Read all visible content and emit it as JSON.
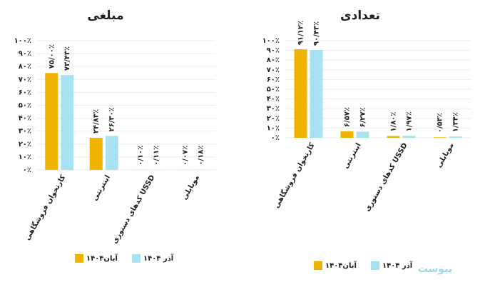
{
  "chart_data": [
    {
      "type": "bar",
      "title": "مبلغی",
      "categories": [
        "کارتخوان فروشگاهی",
        "اینترنتی",
        "کدهای دستوری USSD",
        "موبایلی"
      ],
      "series": [
        {
          "name": "آبان۱۴۰۴",
          "color": "#f0b400",
          "values": [
            75.0,
            24.83,
            0.1,
            0.07
          ],
          "value_labels": [
            "۷۵/۰۰٪",
            "۲۴/۸۳٪",
            "۰/۱۰٪",
            "۰/۰۷٪"
          ]
        },
        {
          "name": "آذر ۱۴۰۴",
          "color": "#a8e2f2",
          "values": [
            73.43,
            26.3,
            0.11,
            0.18
          ],
          "value_labels": [
            "۷۳/۴۳٪",
            "۲۶/۳۰٪",
            "۰/۱۱٪",
            "۰/۱۸٪"
          ]
        }
      ],
      "ylim": [
        0,
        100
      ],
      "yticks": [
        {
          "value": 0,
          "label": "۰٪"
        },
        {
          "value": 10,
          "label": "۱۰٪"
        },
        {
          "value": 20,
          "label": "۲۰٪"
        },
        {
          "value": 30,
          "label": "۳۰٪"
        },
        {
          "value": 40,
          "label": "۴۰٪"
        },
        {
          "value": 50,
          "label": "۵۰٪"
        },
        {
          "value": 60,
          "label": "۶۰٪"
        },
        {
          "value": 70,
          "label": "۷۰٪"
        },
        {
          "value": 80,
          "label": "۸۰٪"
        },
        {
          "value": 90,
          "label": "۹۰٪"
        },
        {
          "value": 100,
          "label": "۱۰۰٪"
        }
      ],
      "grid": true
    },
    {
      "type": "bar",
      "title": "تعدادی",
      "categories": [
        "کارتخوان فروشگاهی",
        "اینترنتی",
        "کدهای دستوری USSD",
        "موبایلی"
      ],
      "series": [
        {
          "name": "آبان۱۴۰۴",
          "color": "#f0b400",
          "values": [
            91.12,
            6.57,
            1.8,
            0.53
          ],
          "value_labels": [
            "۹۱/۱۲٪",
            "۶/۵۷٪",
            "۱/۸۰٪",
            "۰/۵۳٪"
          ]
        },
        {
          "name": "آذر ۱۴۰۴",
          "color": "#a8e2f2",
          "values": [
            90.43,
            6.27,
            1.97,
            1.34
          ],
          "value_labels": [
            "۹۰/۴۳٪",
            "۶/۲۷٪",
            "۱/۹۷٪",
            "۱/۳۴٪"
          ]
        }
      ],
      "ylim": [
        0,
        100
      ],
      "yticks": [
        {
          "value": 0,
          "label": "۰٪"
        },
        {
          "value": 10,
          "label": "۱۰٪"
        },
        {
          "value": 20,
          "label": "۲۰٪"
        },
        {
          "value": 30,
          "label": "۳۰٪"
        },
        {
          "value": 40,
          "label": "۴۰٪"
        },
        {
          "value": 50,
          "label": "۵۰٪"
        },
        {
          "value": 60,
          "label": "۶۰٪"
        },
        {
          "value": 70,
          "label": "۷۰٪"
        },
        {
          "value": 80,
          "label": "۸۰٪"
        },
        {
          "value": 90,
          "label": "۹۰٪"
        },
        {
          "value": 100,
          "label": "۱۰۰٪"
        }
      ],
      "grid": true
    }
  ],
  "watermark": "پیوست"
}
